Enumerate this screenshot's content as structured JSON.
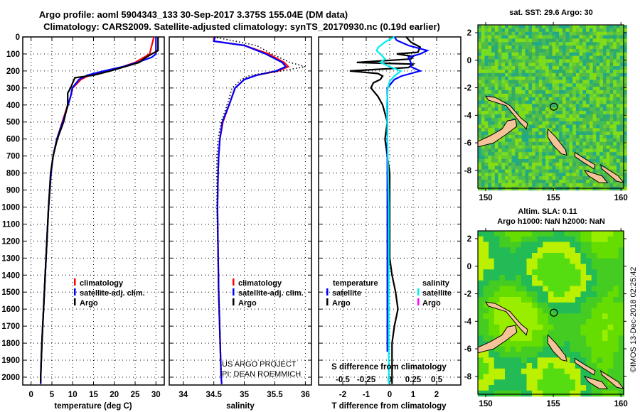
{
  "header": {
    "line1": "Argo profile: aoml 5904343_133 30-Sep-2017 3.375S 155.04E (DM data)",
    "line2": "Climatology: CARS2009. Satellite-adjusted climatology: synTS_20170930.nc (0.19d earlier)"
  },
  "colors": {
    "climatology": "#ff0000",
    "satellite": "#0000ff",
    "argo": "#000000",
    "sal_satellite": "#00eeee",
    "sal_argo": "#ff00ff",
    "land": "#f5c398"
  },
  "chart_data": [
    {
      "type": "line",
      "title": "",
      "xlabel": "temperature (deg C)",
      "ylabel": "",
      "xlim": [
        -2,
        32
      ],
      "ylim": [
        2046,
        0
      ],
      "xticks": [
        "0",
        "5",
        "10",
        "15",
        "20",
        "25",
        "30"
      ],
      "xtick_values": [
        0,
        5,
        10,
        15,
        20,
        25,
        30
      ],
      "yticks": [
        "0",
        "100",
        "200",
        "300",
        "400",
        "500",
        "600",
        "700",
        "800",
        "900",
        "1000",
        "1100",
        "1200",
        "1300",
        "1400",
        "1500",
        "1600",
        "1700",
        "1800",
        "1900",
        "2000"
      ],
      "ytick_values": [
        0,
        100,
        200,
        300,
        400,
        500,
        600,
        700,
        800,
        900,
        1000,
        1100,
        1200,
        1300,
        1400,
        1500,
        1600,
        1700,
        1800,
        1900,
        2000
      ],
      "grid": true,
      "legend": {
        "placement": "lower-middle",
        "entries": [
          "climatology",
          "satellite-adj. clim.",
          "Argo"
        ]
      },
      "series": [
        {
          "name": "climatology",
          "color": "#ff0000",
          "depth": [
            0,
            50,
            100,
            150,
            175,
            200,
            225,
            250,
            300,
            350,
            400,
            500,
            600,
            700,
            800,
            1000,
            1200,
            1500,
            1800,
            2000,
            2040
          ],
          "values": [
            29.5,
            29,
            28.5,
            25,
            22,
            18,
            14,
            12,
            10,
            9.5,
            8.8,
            7.5,
            6.2,
            5.3,
            4.8,
            4.2,
            3.8,
            3.2,
            2.6,
            2.3,
            2.3
          ]
        },
        {
          "name": "satellite-adj. clim.",
          "color": "#0000ff",
          "depth": [
            0,
            100,
            120,
            150,
            175,
            200,
            225,
            250,
            300,
            350,
            400,
            500,
            600,
            700,
            800,
            1000,
            1200,
            1500,
            1800,
            2000,
            2040
          ],
          "values": [
            30,
            30,
            29,
            25.5,
            22,
            17.5,
            13.5,
            11.5,
            9.9,
            9.5,
            8.9,
            7.6,
            6.2,
            5.3,
            4.8,
            4.2,
            3.8,
            3.2,
            2.6,
            2.3,
            2.3
          ]
        },
        {
          "name": "Argo",
          "color": "#000000",
          "depth": [
            0,
            80,
            100,
            130,
            150,
            175,
            200,
            225,
            240,
            300,
            330,
            400,
            500,
            600,
            700,
            800,
            1000,
            1200,
            1500,
            1800,
            2000,
            2030
          ],
          "values": [
            30.5,
            30.5,
            29,
            27,
            26,
            22.5,
            19,
            15,
            10.5,
            9.5,
            8.8,
            8.8,
            7.8,
            6.3,
            5.3,
            4.7,
            4.2,
            3.8,
            3.2,
            2.6,
            2.3,
            2.3
          ]
        }
      ]
    },
    {
      "type": "line",
      "xlabel": "salinity",
      "xlim": [
        33.77,
        36.1
      ],
      "ylim": [
        2046,
        0
      ],
      "xticks": [
        "34",
        "34.5",
        "35",
        "35.5",
        "36"
      ],
      "xtick_values": [
        34,
        34.5,
        35,
        35.5,
        36
      ],
      "grid": true,
      "legend": {
        "placement": "lower-middle",
        "entries": [
          "climatology",
          "satellite-adj. clim.",
          "Argo"
        ]
      },
      "annotations": [
        "US ARGO PROJECT",
        "PI: DEAN ROEMMICH"
      ],
      "series": [
        {
          "name": "climatology",
          "color": "#ff0000",
          "depth": [
            0,
            25,
            50,
            100,
            150,
            175,
            200,
            225,
            250,
            300,
            400,
            500,
            600,
            700,
            800,
            1000,
            1500,
            2000,
            2040
          ],
          "values": [
            34.5,
            34.5,
            35,
            35.4,
            35.65,
            35.72,
            35.55,
            35.2,
            35.0,
            34.85,
            34.75,
            34.65,
            34.6,
            34.58,
            34.57,
            34.56,
            34.58,
            34.62,
            34.63
          ]
        },
        {
          "name": "satellite-adj. clim.",
          "color": "#0000ff",
          "depth": [
            0,
            25,
            50,
            100,
            150,
            175,
            200,
            225,
            250,
            300,
            400,
            500,
            600,
            700,
            800,
            1000,
            1500,
            2000,
            2040
          ],
          "values": [
            34.52,
            34.5,
            35,
            35.35,
            35.62,
            35.68,
            35.52,
            35.2,
            35.0,
            34.85,
            34.75,
            34.64,
            34.6,
            34.58,
            34.57,
            34.56,
            34.58,
            34.62,
            34.63
          ]
        },
        {
          "name": "Argo",
          "color": "#000000",
          "style": "dotted",
          "depth": [
            0,
            50,
            100,
            150,
            175,
            200,
            225,
            250,
            300,
            400,
            500,
            600,
            700,
            800,
            1000,
            1500,
            2000
          ],
          "values": [
            34.5,
            35.2,
            35.45,
            35.75,
            36.0,
            35.6,
            35.1,
            34.95,
            34.8,
            34.72,
            34.62,
            34.57,
            34.55,
            34.55,
            34.55,
            34.58,
            34.62
          ]
        }
      ]
    },
    {
      "type": "line",
      "xlabel": "T difference from climatology",
      "xlim": [
        -3.03,
        3.03
      ],
      "ylim": [
        2046,
        0
      ],
      "xticks": [
        "-2",
        "-1",
        "0",
        "1",
        "2"
      ],
      "xtick_values": [
        -2,
        -1,
        0,
        1,
        2
      ],
      "secondary_xlabel": "S difference from climatology",
      "secondary_xticks": [
        "-0.5",
        "-0.25",
        "0",
        "0.25",
        "0.5"
      ],
      "secondary_xtick_values": [
        -0.5,
        -0.25,
        0,
        0.25,
        0.5
      ],
      "grid": true,
      "legend": {
        "placement": "lower",
        "temperature_title": "temperature",
        "salinity_title": "salinity",
        "entries": [
          "satellite",
          "Argo",
          "satellite",
          "Argo"
        ]
      },
      "series": [
        {
          "name": "temperature Argo",
          "color": "#000000",
          "units": "degC",
          "depth": [
            0,
            30,
            60,
            90,
            100,
            115,
            130,
            150,
            160,
            180,
            200,
            215,
            230,
            250,
            270,
            300,
            350,
            400,
            500,
            600,
            700,
            800,
            1000,
            1300,
            1400,
            1500,
            1600,
            1700,
            1800,
            1900,
            2000,
            2040
          ],
          "values": [
            0.7,
            0.9,
            1.3,
            1.2,
            0.3,
            1.0,
            0.9,
            -1.4,
            1.0,
            0.8,
            -1.7,
            -0.5,
            -0.3,
            -0.4,
            -0.7,
            -0.8,
            -0.5,
            -0.3,
            -0.1,
            -0.2,
            -0.1,
            0,
            0,
            0,
            0.1,
            0.25,
            0.35,
            0.2,
            0.1,
            0.1,
            0.1,
            0.1
          ]
        },
        {
          "name": "temperature satellite",
          "color": "#0000ff",
          "units": "degC",
          "depth": [
            0,
            20,
            50,
            80,
            100,
            120,
            150,
            175,
            200,
            215,
            230,
            250,
            300,
            400,
            1000,
            1850
          ],
          "values": [
            0.2,
            0.3,
            0.8,
            1.6,
            1.3,
            0.8,
            0.9,
            0.9,
            1.3,
            0.9,
            0.5,
            0.2,
            -0.1,
            -0.1,
            -0.1,
            -0.1
          ]
        },
        {
          "name": "salinity satellite",
          "color": "#00eeee",
          "units": "psu",
          "depth": [
            0,
            30,
            60,
            80,
            100,
            130,
            150,
            175,
            200,
            230,
            260,
            300,
            400,
            1000,
            1500,
            2000,
            2040
          ],
          "values": [
            0.05,
            -0.05,
            -0.12,
            -0.14,
            -0.1,
            -0.05,
            -0.1,
            0.0,
            0.12,
            0.05,
            0.0,
            -0.02,
            -0.03,
            -0.01,
            -0.01,
            -0.01,
            -0.01
          ]
        }
      ]
    }
  ],
  "maps": [
    {
      "title1": "sat. SST: 29.6 Argo: 30",
      "title2": "",
      "xticks": [
        "150",
        "155",
        "160"
      ],
      "xtick_values": [
        150,
        155,
        160
      ],
      "yticks": [
        "2",
        "0",
        "-2",
        "-4",
        "-6",
        "-8"
      ],
      "ytick_values": [
        2,
        0,
        -2,
        -4,
        -6,
        -8
      ],
      "float_position": [
        155.04,
        -3.375
      ]
    },
    {
      "title1": "Altim. SLA: 0.11",
      "title2": "Argo h1000: NaN h2000: NaN",
      "xticks": [
        "150",
        "155",
        "160"
      ],
      "xtick_values": [
        150,
        155,
        160
      ],
      "yticks": [
        "2",
        "0",
        "-2",
        "-4",
        "-6",
        "-8"
      ],
      "ytick_values": [
        2,
        0,
        -2,
        -4,
        -6,
        -8
      ],
      "float_position": [
        155.04,
        -3.375
      ]
    }
  ],
  "footer": {
    "credit": "©IMOS 13-Dec-2018 02:25:42"
  }
}
